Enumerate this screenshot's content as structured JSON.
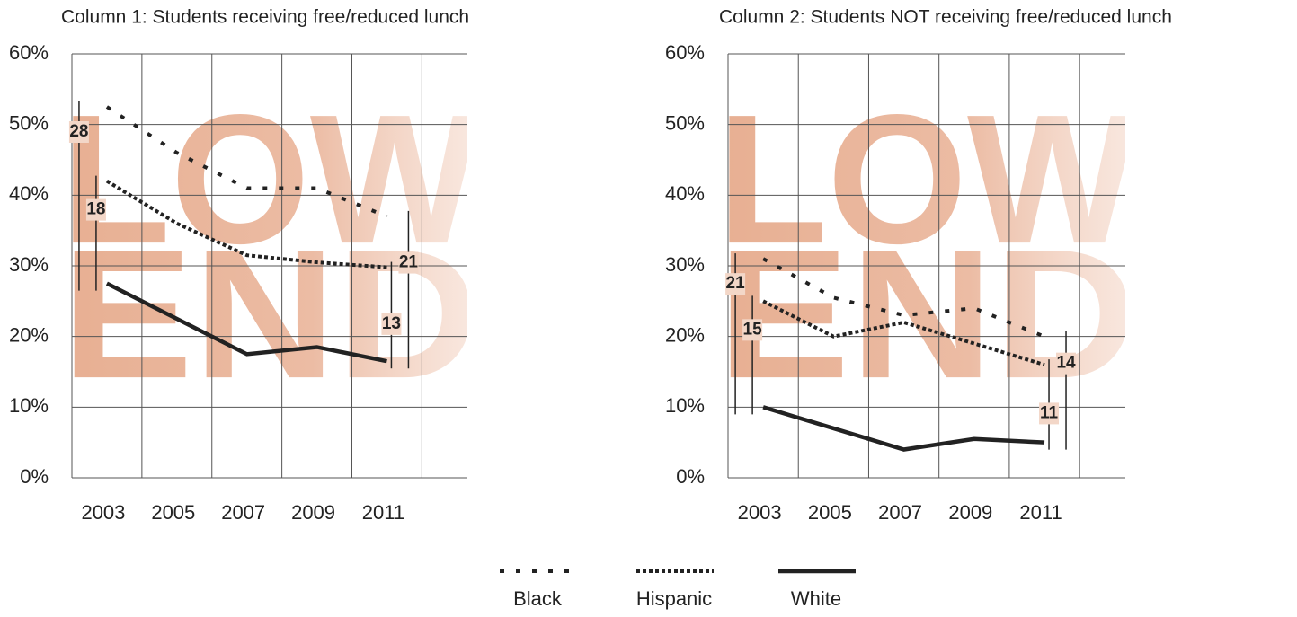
{
  "chart_data": [
    {
      "type": "line",
      "title": "Column 1: Students receiving free/reduced lunch",
      "x": [
        2003,
        2005,
        2007,
        2009,
        2011
      ],
      "series": [
        {
          "name": "Black",
          "color": "#222222",
          "style": "dotted",
          "values": [
            52.5,
            46,
            41,
            41,
            37
          ]
        },
        {
          "name": "Hispanic",
          "color": "#222222",
          "style": "dashed",
          "values": [
            42,
            36,
            31.5,
            30.5,
            29.8
          ]
        },
        {
          "name": "White",
          "color": "#222222",
          "style": "solid",
          "values": [
            27.5,
            22.5,
            17.5,
            18.5,
            16.5
          ]
        }
      ],
      "annotations": [
        28,
        18,
        21,
        13
      ],
      "background_text": [
        "LOW",
        "END"
      ],
      "xlim": [
        2002,
        2013.3
      ],
      "xticks": [
        2003,
        2005,
        2007,
        2009,
        2011
      ],
      "xgrid": [
        2002,
        2004,
        2006,
        2008,
        2010,
        2012
      ],
      "ylim": [
        0,
        60
      ],
      "yticks": [
        {
          "value": 0,
          "label": "0%"
        },
        {
          "value": 10,
          "label": "10%"
        },
        {
          "value": 20,
          "label": "20%"
        },
        {
          "value": 30,
          "label": "30%"
        },
        {
          "value": 40,
          "label": "40%"
        },
        {
          "value": 50,
          "label": "50%"
        },
        {
          "value": 60,
          "label": "60%"
        }
      ],
      "grid": true
    },
    {
      "type": "line",
      "title": "Column 2: Students NOT receiving free/reduced lunch",
      "x": [
        2003,
        2005,
        2007,
        2009,
        2011
      ],
      "series": [
        {
          "name": "Black",
          "color": "#222222",
          "style": "dotted",
          "values": [
            31,
            25.5,
            23,
            24,
            20
          ]
        },
        {
          "name": "Hispanic",
          "color": "#222222",
          "style": "dashed",
          "values": [
            25,
            20,
            22,
            19,
            16
          ]
        },
        {
          "name": "White",
          "color": "#222222",
          "style": "solid",
          "values": [
            10,
            7,
            4,
            5.5,
            5
          ]
        }
      ],
      "annotations": [
        21,
        15,
        14,
        11
      ],
      "background_text": [
        "LOW",
        "END"
      ],
      "xlim": [
        2002,
        2013.3
      ],
      "xticks": [
        2003,
        2005,
        2007,
        2009,
        2011
      ],
      "xgrid": [
        2002,
        2004,
        2006,
        2008,
        2010,
        2012
      ],
      "ylim": [
        0,
        60
      ],
      "yticks": [
        {
          "value": 0,
          "label": "0%"
        },
        {
          "value": 10,
          "label": "10%"
        },
        {
          "value": 20,
          "label": "20%"
        },
        {
          "value": 30,
          "label": "30%"
        },
        {
          "value": 40,
          "label": "40%"
        },
        {
          "value": 50,
          "label": "50%"
        },
        {
          "value": 60,
          "label": "60%"
        }
      ],
      "grid": true
    }
  ]
}
